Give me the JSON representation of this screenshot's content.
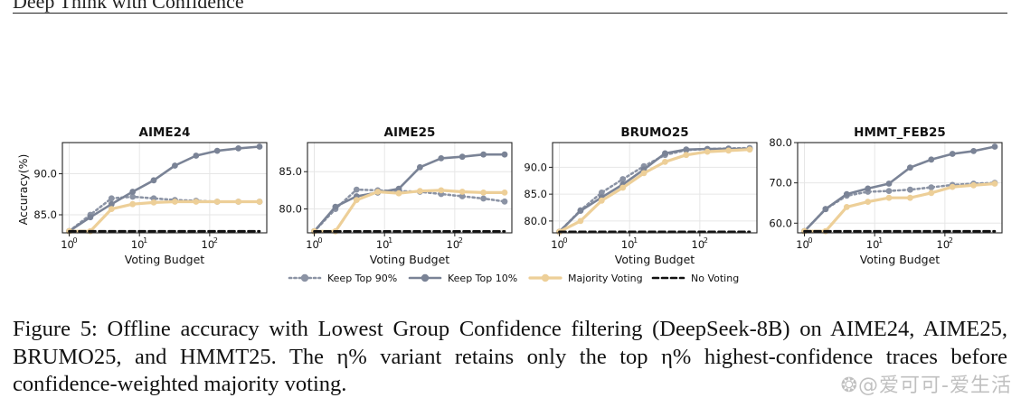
{
  "header": {
    "text": "Deep Think with Confidence"
  },
  "chart_data": [
    {
      "type": "line",
      "title": "AIME24",
      "xlabel": "Voting Budget",
      "ylabel": "Accuracy(%)",
      "xscale": "log",
      "xlim": [
        0.8,
        650
      ],
      "ylim": [
        82.8,
        93.8
      ],
      "yticks": [
        85.0,
        90.0
      ],
      "yticklabels": [
        "85.0",
        "90.0"
      ],
      "xticks": [
        1,
        10,
        100
      ],
      "xticklabels": [
        "10",
        "10",
        "10"
      ],
      "xtickexps": [
        "0",
        "1",
        "2"
      ],
      "x": [
        1,
        2,
        4,
        8,
        16,
        32,
        64,
        128,
        256,
        512
      ],
      "series": [
        {
          "name": "Keep Top 90%",
          "values": [
            83.0,
            85.0,
            87.0,
            87.2,
            87.0,
            86.8,
            86.7,
            86.6,
            86.6,
            86.6
          ]
        },
        {
          "name": "Keep Top 10%",
          "values": [
            83.0,
            84.7,
            86.3,
            87.8,
            89.2,
            91.0,
            92.2,
            92.8,
            93.1,
            93.3
          ]
        },
        {
          "name": "Majority Voting",
          "values": [
            83.0,
            83.0,
            85.7,
            86.3,
            86.5,
            86.6,
            86.6,
            86.6,
            86.6,
            86.6
          ]
        },
        {
          "name": "No Voting",
          "values": [
            83.0,
            83.0,
            83.0,
            83.0,
            83.0,
            83.0,
            83.0,
            83.0,
            83.0,
            83.0
          ]
        }
      ]
    },
    {
      "type": "line",
      "title": "AIME25",
      "xlabel": "Voting Budget",
      "ylabel": "",
      "xscale": "log",
      "xlim": [
        0.8,
        650
      ],
      "ylim": [
        76.8,
        88.9
      ],
      "yticks": [
        80.0,
        85.0
      ],
      "yticklabels": [
        "80.0",
        "85.0"
      ],
      "xticks": [
        1,
        10,
        100
      ],
      "xticklabels": [
        "10",
        "10",
        "10"
      ],
      "xtickexps": [
        "0",
        "1",
        "2"
      ],
      "x": [
        1,
        2,
        4,
        8,
        16,
        32,
        64,
        128,
        256,
        512
      ],
      "series": [
        {
          "name": "Keep Top 90%",
          "values": [
            77.0,
            80.0,
            82.6,
            82.5,
            82.4,
            82.3,
            82.0,
            81.7,
            81.4,
            81.0
          ]
        },
        {
          "name": "Keep Top 10%",
          "values": [
            77.0,
            80.3,
            81.7,
            82.2,
            82.7,
            85.6,
            86.8,
            87.0,
            87.3,
            87.3
          ]
        },
        {
          "name": "Majority Voting",
          "values": [
            77.0,
            77.0,
            81.2,
            82.3,
            82.1,
            82.4,
            82.5,
            82.3,
            82.2,
            82.2
          ]
        },
        {
          "name": "No Voting",
          "values": [
            77.0,
            77.0,
            77.0,
            77.0,
            77.0,
            77.0,
            77.0,
            77.0,
            77.0,
            77.0
          ]
        }
      ]
    },
    {
      "type": "line",
      "title": "BRUMO25",
      "xlabel": "Voting Budget",
      "ylabel": "",
      "xscale": "log",
      "xlim": [
        0.8,
        650
      ],
      "ylim": [
        77.8,
        94.6
      ],
      "yticks": [
        80.0,
        85.0,
        90.0
      ],
      "yticklabels": [
        "80.0",
        "85.0",
        "90.0"
      ],
      "xticks": [
        1,
        10,
        100
      ],
      "xticklabels": [
        "10",
        "10",
        "10"
      ],
      "xtickexps": [
        "0",
        "1",
        "2"
      ],
      "x": [
        1,
        2,
        4,
        8,
        16,
        32,
        64,
        128,
        256,
        512
      ],
      "series": [
        {
          "name": "Keep Top 90%",
          "values": [
            78.0,
            82.0,
            85.3,
            87.8,
            90.2,
            92.3,
            93.2,
            93.4,
            93.5,
            93.6
          ]
        },
        {
          "name": "Keep Top 10%",
          "values": [
            78.0,
            81.9,
            84.4,
            86.8,
            89.6,
            92.6,
            93.3,
            93.4,
            93.4,
            93.4
          ]
        },
        {
          "name": "Majority Voting",
          "values": [
            78.0,
            80.0,
            83.8,
            86.2,
            88.9,
            91.0,
            92.3,
            92.9,
            93.1,
            93.3
          ]
        },
        {
          "name": "No Voting",
          "values": [
            78.0,
            78.0,
            78.0,
            78.0,
            78.0,
            78.0,
            78.0,
            78.0,
            78.0,
            78.0
          ]
        }
      ]
    },
    {
      "type": "line",
      "title": "HMMT_FEB25",
      "xlabel": "Voting Budget",
      "ylabel": "",
      "xscale": "log",
      "xlim": [
        0.8,
        650
      ],
      "ylim": [
        57.6,
        80.0
      ],
      "yticks": [
        60.0,
        70.0,
        80.0
      ],
      "yticklabels": [
        "60.0",
        "70.0",
        "80.0"
      ],
      "xticks": [
        1,
        10,
        100
      ],
      "xticklabels": [
        "10",
        "10",
        "10"
      ],
      "xtickexps": [
        "0",
        "1",
        "2"
      ],
      "x": [
        1,
        2,
        4,
        8,
        16,
        32,
        64,
        128,
        256,
        512
      ],
      "series": [
        {
          "name": "Keep Top 90%",
          "values": [
            58.0,
            63.5,
            66.8,
            67.8,
            68.0,
            68.3,
            68.9,
            69.5,
            69.8,
            70.0
          ]
        },
        {
          "name": "Keep Top 10%",
          "values": [
            58.0,
            63.5,
            67.2,
            68.6,
            69.8,
            73.8,
            75.8,
            77.2,
            77.9,
            79.0
          ]
        },
        {
          "name": "Majority Voting",
          "values": [
            58.0,
            58.0,
            64.0,
            65.3,
            66.3,
            66.3,
            67.5,
            69.0,
            69.4,
            69.8
          ]
        },
        {
          "name": "No Voting",
          "values": [
            58.0,
            58.0,
            58.0,
            58.0,
            58.0,
            58.0,
            58.0,
            58.0,
            58.0,
            58.0
          ]
        }
      ]
    }
  ],
  "legend": {
    "placement": "bottom-center",
    "items": [
      {
        "name": "Keep Top 90%",
        "color": "#8b93a4",
        "style": "dotted-marker"
      },
      {
        "name": "Keep Top 10%",
        "color": "#7a8396",
        "style": "solid-marker"
      },
      {
        "name": "Majority Voting",
        "color": "#edcf98",
        "style": "solid-marker"
      },
      {
        "name": "No Voting",
        "color": "#111111",
        "style": "dashed"
      }
    ]
  },
  "caption": {
    "text": "Figure 5: Offline accuracy with Lowest Group Confidence filtering (DeepSeek-8B) on AIME24, AIME25, BRUMO25, and HMMT25. The η% variant retains only the top η% highest-confidence traces before confidence-weighted majority voting."
  },
  "watermark": {
    "text": "@爱可可-爱生活",
    "logo_icon": "weibo-logo-icon"
  },
  "colors": {
    "top90": "#8b93a4",
    "top10": "#7a8396",
    "majority": "#edcf98",
    "novote": "#111111",
    "grid": "#e6e6e6"
  }
}
